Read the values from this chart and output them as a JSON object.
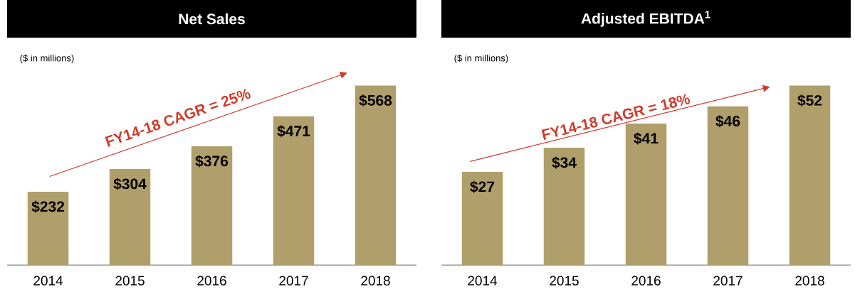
{
  "chart_data": [
    {
      "type": "bar",
      "title": "Net Sales",
      "subtitle": "($ in millions)",
      "annotations": [
        "FY14-18 CAGR = 25%"
      ],
      "categories": [
        "2014",
        "2015",
        "2016",
        "2017",
        "2018"
      ],
      "values": [
        232,
        304,
        376,
        471,
        568
      ],
      "value_labels": [
        "$232",
        "$304",
        "$376",
        "$471",
        "$568"
      ],
      "color": "#b09f6b",
      "tick_labels": "x"
    },
    {
      "type": "bar",
      "title": "Adjusted EBITDA$^{1}$",
      "subtitle": "($ in millions)",
      "annotations": [
        "FY14-18 CAGR = 18%"
      ],
      "categories": [
        "2014",
        "2015",
        "2016",
        "2017",
        "2018"
      ],
      "values": [
        27,
        34,
        41,
        46,
        52
      ],
      "value_labels": [
        "$27",
        "$34",
        "$41",
        "$46",
        "$52"
      ],
      "color": "#b09f6b",
      "tick_labels": "x"
    }
  ]
}
